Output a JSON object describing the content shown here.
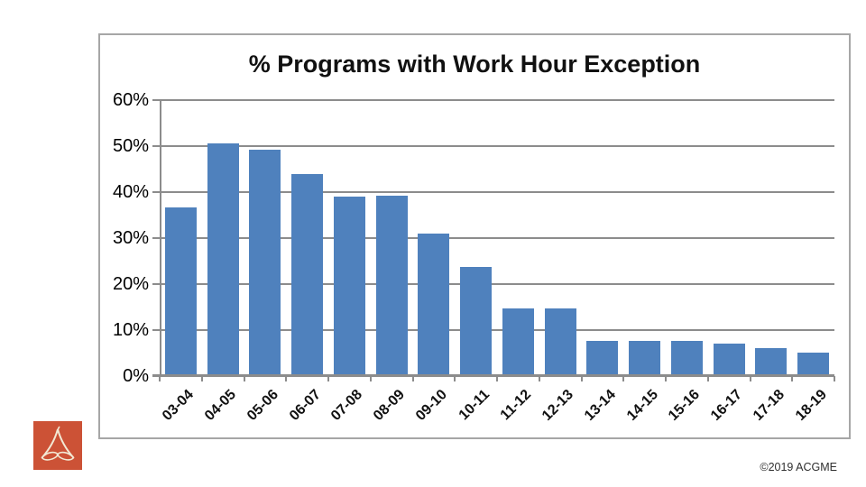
{
  "slide": {
    "background": "#ffffff"
  },
  "chart_data": {
    "type": "bar",
    "title": "% Programs with Work Hour Exception",
    "categories": [
      "03-04",
      "04-05",
      "05-06",
      "06-07",
      "07-08",
      "08-09",
      "09-10",
      "10-11",
      "11-12",
      "12-13",
      "13-14",
      "14-15",
      "15-16",
      "16-17",
      "17-18",
      "18-19"
    ],
    "values": [
      36.7,
      50.5,
      49.3,
      44.0,
      39.0,
      39.3,
      31.0,
      23.8,
      14.8,
      14.8,
      7.6,
      7.6,
      7.6,
      7.1,
      6.1,
      5.1
    ],
    "xlabel": "",
    "ylabel": "",
    "ylim": [
      0,
      60
    ],
    "y_tick_labels": [
      "60%",
      "50%",
      "40%",
      "30%",
      "20%",
      "10%",
      "0%"
    ],
    "grid": true,
    "legend": "none",
    "bar_color": "#4f81bd",
    "axis_color": "#8c8c8c",
    "border_color": "#a6a6a6"
  },
  "footer": {
    "copyright": "©2019 ACGME"
  },
  "logo": {
    "label": "acgme-logo",
    "background": "#cc5236",
    "glyph_color": "#f2e9d4"
  }
}
